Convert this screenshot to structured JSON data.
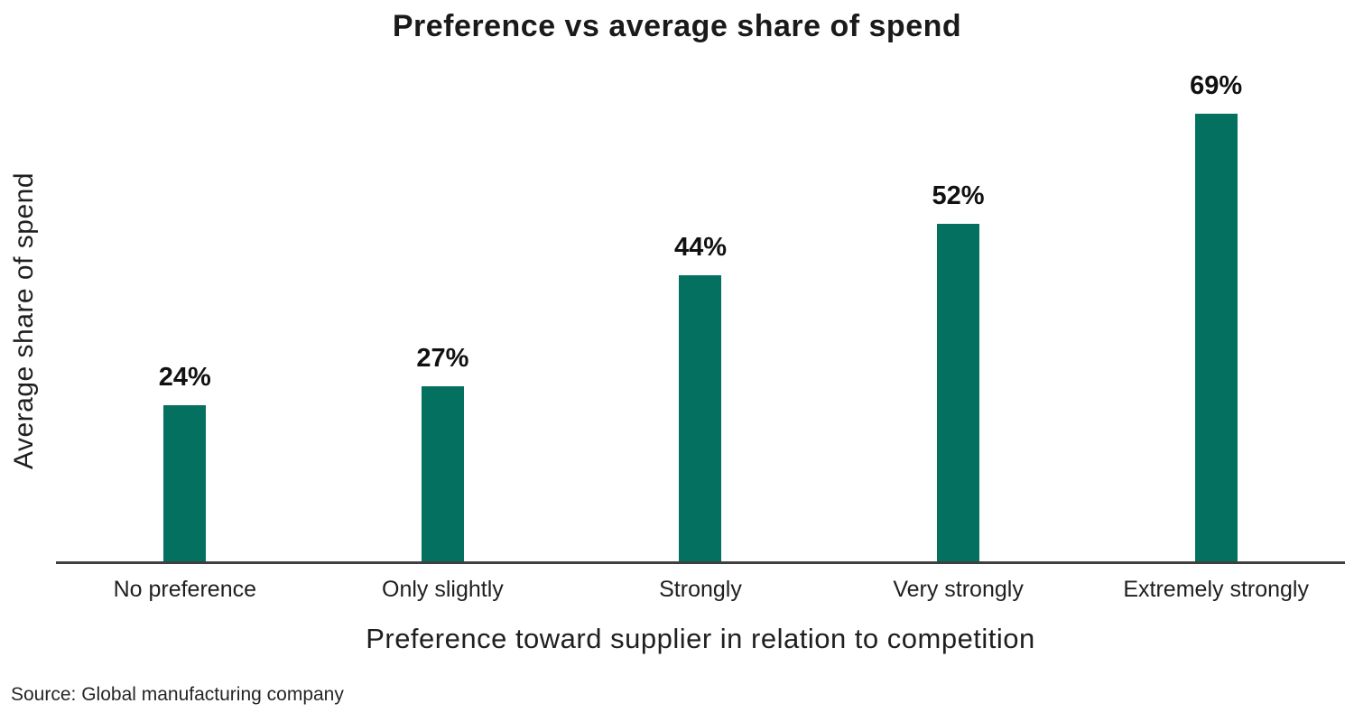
{
  "chart_data": {
    "type": "bar",
    "title": "Preference vs average share of spend",
    "xlabel": "Preference toward supplier in relation to competition",
    "ylabel": "Average share of spend",
    "categories": [
      "No preference",
      "Only slightly",
      "Strongly",
      "Very strongly",
      "Extremely strongly"
    ],
    "values": [
      24,
      27,
      44,
      52,
      69
    ],
    "value_labels": [
      "24%",
      "27%",
      "44%",
      "52%",
      "69%"
    ],
    "ylim": [
      0,
      72
    ],
    "grid": false,
    "legend": "none",
    "bar_color": "#047160",
    "axis_line_color": "#3f3f3f"
  },
  "source": {
    "text": "Source: Global manufacturing company"
  }
}
